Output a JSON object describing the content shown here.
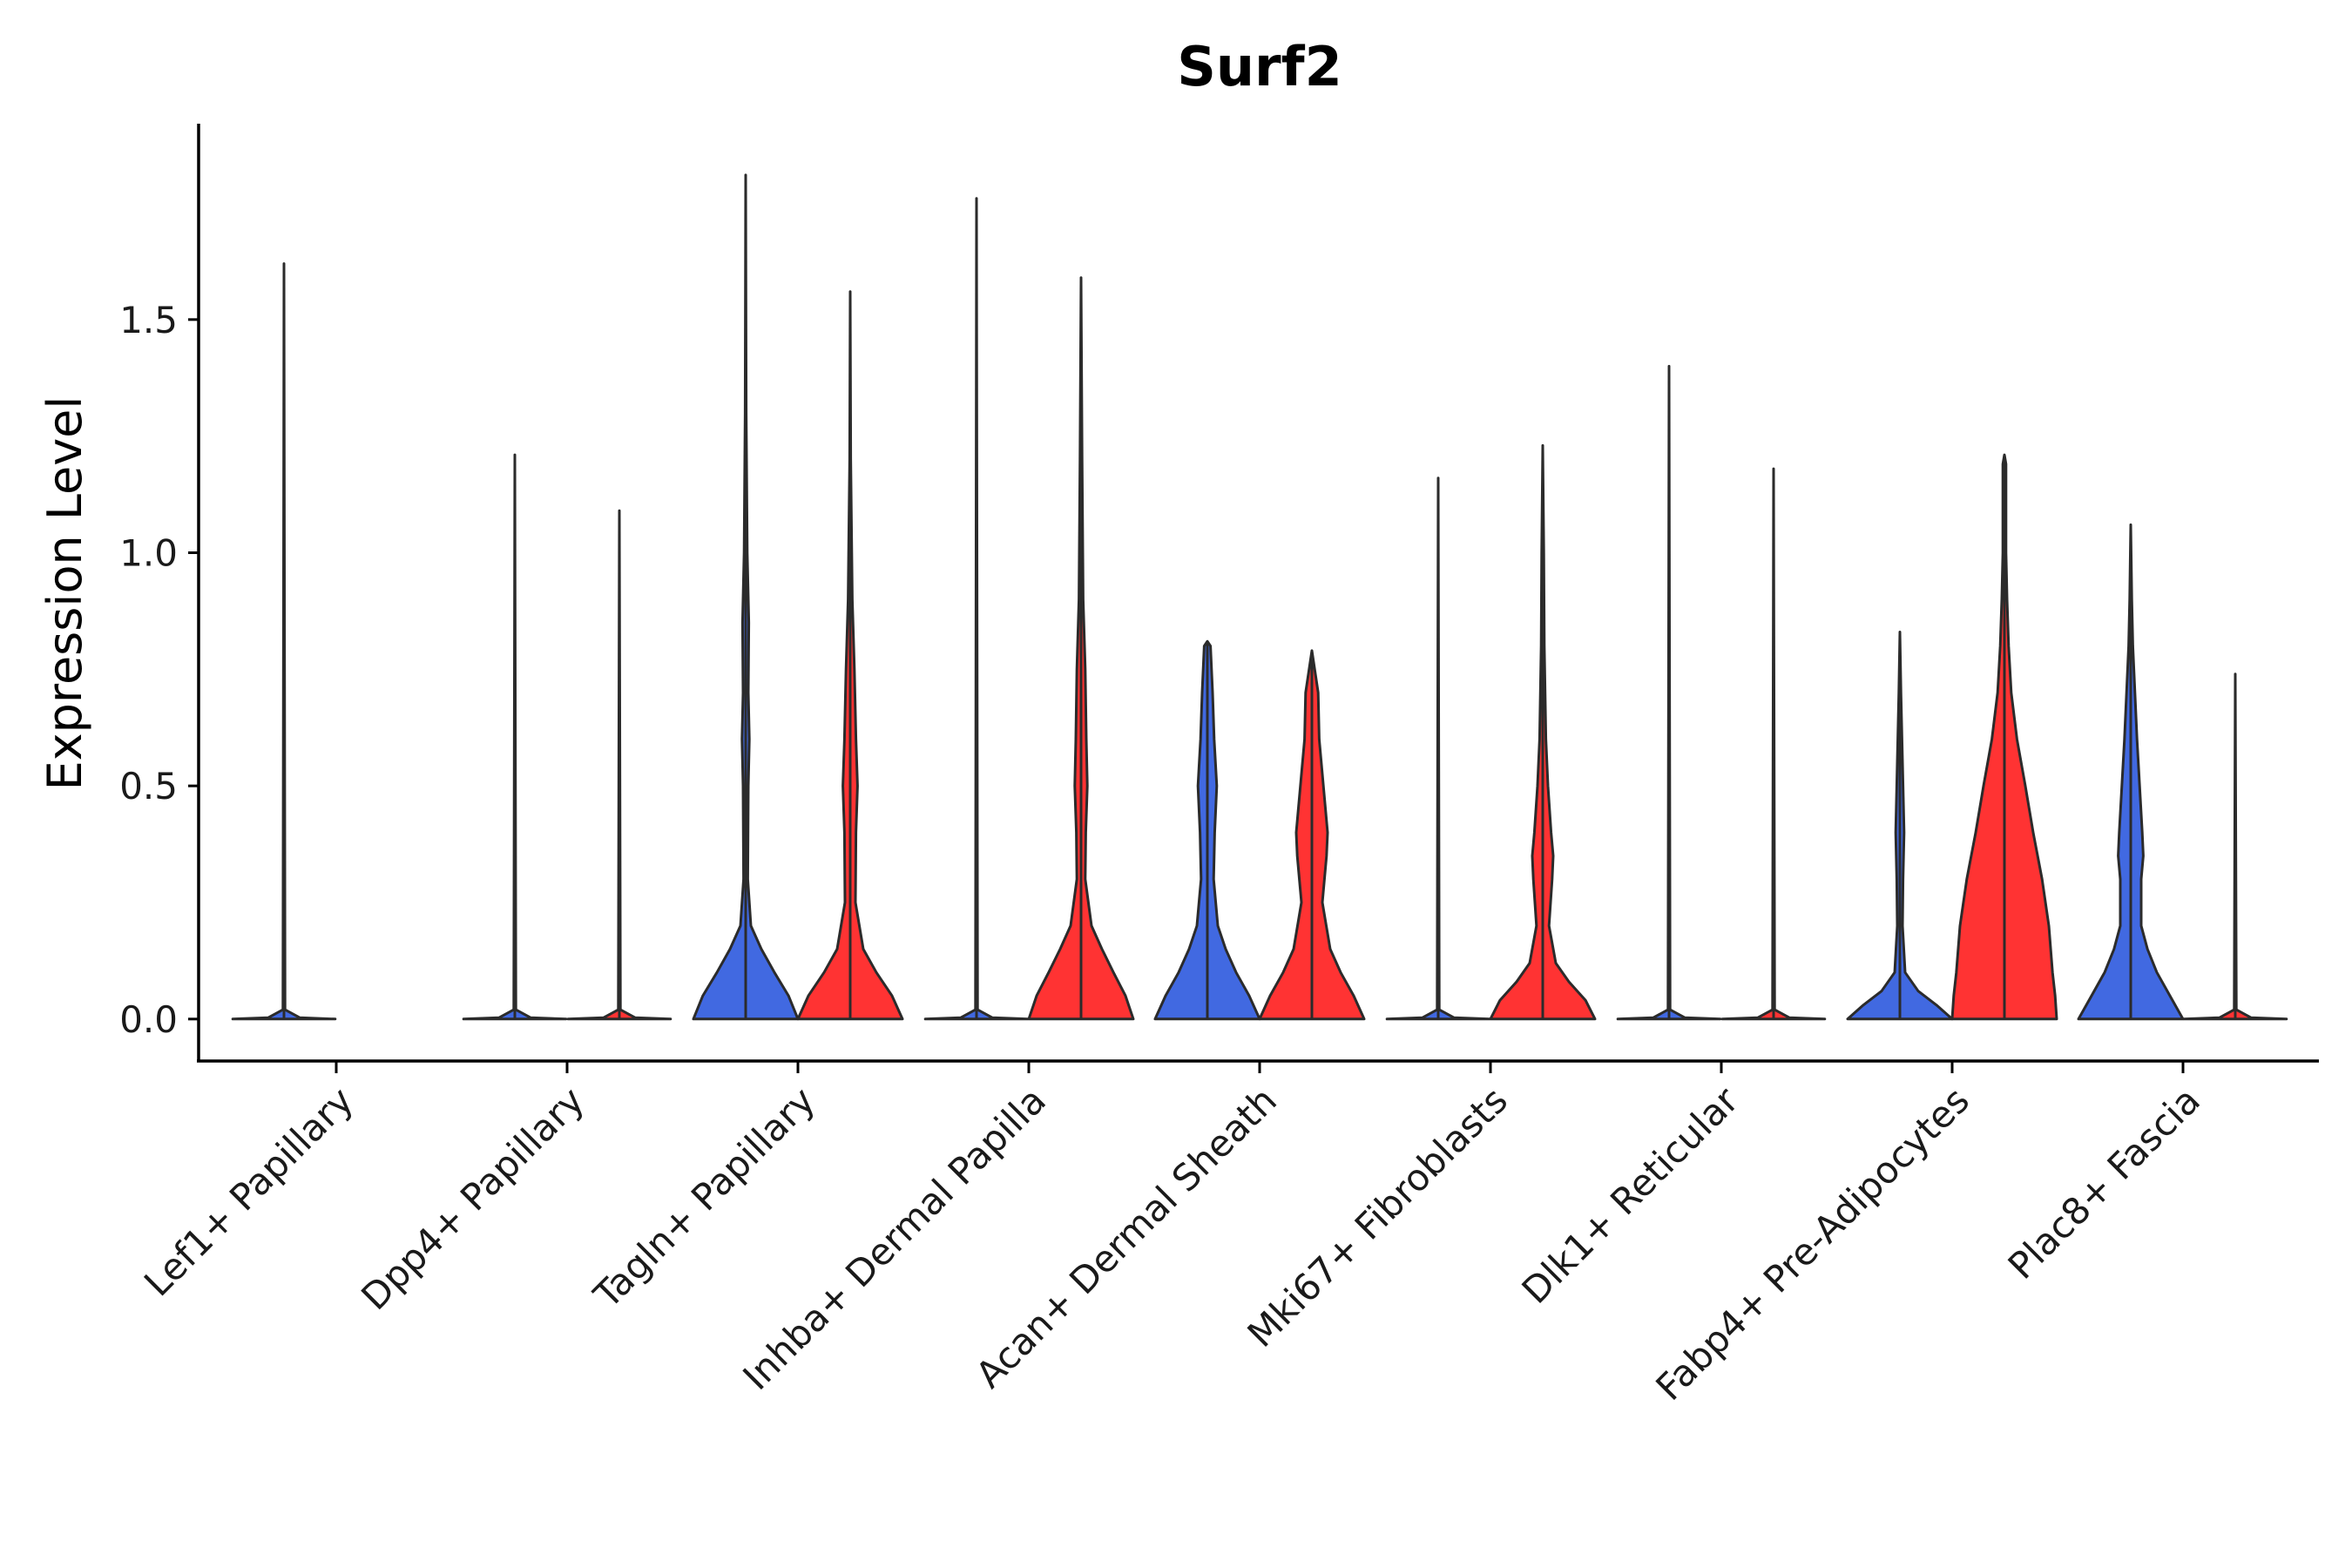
{
  "chart_data": {
    "type": "violin",
    "title": "Surf2",
    "xlabel": "",
    "ylabel": "Expression Level",
    "ylim": [
      -0.09,
      1.92
    ],
    "yticks": [
      0.0,
      0.5,
      1.0,
      1.5
    ],
    "ytick_labels": [
      "0.0",
      "0.5",
      "1.0",
      "1.5"
    ],
    "legend": "none",
    "grid": false,
    "categories": [
      "Lef1+ Papillary",
      "Dpp4+ Papillary",
      "Tagln+ Papillary",
      "Inhba+ Dermal Papilla",
      "Acan+ Dermal Sheath",
      "Mki67+ Fibroblasts",
      "Dlk1+ Reticular",
      "Fabp4+ Pre-Adipocytes",
      "Plac8+ Fascia"
    ],
    "series": [
      {
        "name": "group1",
        "color": "#4169E1",
        "max": [
          1.62,
          1.21,
          1.81,
          1.76,
          0.81,
          1.16,
          1.4,
          0.83,
          1.06
        ],
        "profiles": [
          [
            [
              0,
              0.98
            ],
            [
              0.003,
              0.3
            ],
            [
              0.02,
              0.02
            ],
            [
              1.62,
              0
            ]
          ],
          [
            [
              0,
              0.98
            ],
            [
              0.003,
              0.3
            ],
            [
              0.02,
              0.02
            ],
            [
              1.21,
              0
            ]
          ],
          [
            [
              0,
              1
            ],
            [
              0.05,
              0.82
            ],
            [
              0.1,
              0.55
            ],
            [
              0.15,
              0.3
            ],
            [
              0.2,
              0.1
            ],
            [
              0.3,
              0.04
            ],
            [
              0.5,
              0.05
            ],
            [
              0.6,
              0.07
            ],
            [
              0.7,
              0.05
            ],
            [
              0.85,
              0.06
            ],
            [
              1.0,
              0.03
            ],
            [
              1.3,
              0.01
            ],
            [
              1.81,
              0
            ]
          ],
          [
            [
              0,
              0.98
            ],
            [
              0.003,
              0.3
            ],
            [
              0.02,
              0.02
            ],
            [
              1.76,
              0
            ]
          ],
          [
            [
              0,
              1
            ],
            [
              0.05,
              0.8
            ],
            [
              0.1,
              0.55
            ],
            [
              0.15,
              0.35
            ],
            [
              0.2,
              0.2
            ],
            [
              0.3,
              0.12
            ],
            [
              0.4,
              0.14
            ],
            [
              0.5,
              0.18
            ],
            [
              0.6,
              0.13
            ],
            [
              0.7,
              0.1
            ],
            [
              0.8,
              0.06
            ],
            [
              0.81,
              0
            ]
          ],
          [
            [
              0,
              0.98
            ],
            [
              0.003,
              0.3
            ],
            [
              0.02,
              0.02
            ],
            [
              1.16,
              0
            ]
          ],
          [
            [
              0,
              0.98
            ],
            [
              0.003,
              0.3
            ],
            [
              0.02,
              0.02
            ],
            [
              1.4,
              0
            ]
          ],
          [
            [
              0,
              1
            ],
            [
              0.03,
              0.7
            ],
            [
              0.06,
              0.35
            ],
            [
              0.1,
              0.1
            ],
            [
              0.2,
              0.05
            ],
            [
              0.3,
              0.06
            ],
            [
              0.4,
              0.08
            ],
            [
              0.5,
              0.06
            ],
            [
              0.6,
              0.04
            ],
            [
              0.7,
              0.02
            ],
            [
              0.83,
              0
            ]
          ],
          [
            [
              0,
              1
            ],
            [
              0.05,
              0.75
            ],
            [
              0.1,
              0.5
            ],
            [
              0.15,
              0.32
            ],
            [
              0.2,
              0.2
            ],
            [
              0.3,
              0.2
            ],
            [
              0.35,
              0.24
            ],
            [
              0.4,
              0.22
            ],
            [
              0.5,
              0.17
            ],
            [
              0.6,
              0.12
            ],
            [
              0.7,
              0.08
            ],
            [
              0.8,
              0.04
            ],
            [
              0.9,
              0.02
            ],
            [
              1.06,
              0
            ]
          ]
        ]
      },
      {
        "name": "group2",
        "color": "#FF3333",
        "max": [
          0.0,
          1.09,
          1.56,
          1.59,
          0.79,
          1.23,
          1.18,
          1.21,
          0.74
        ],
        "profiles": [
          [],
          [
            [
              0,
              0.98
            ],
            [
              0.003,
              0.3
            ],
            [
              0.02,
              0.02
            ],
            [
              1.09,
              0
            ]
          ],
          [
            [
              0,
              1
            ],
            [
              0.05,
              0.8
            ],
            [
              0.1,
              0.5
            ],
            [
              0.15,
              0.25
            ],
            [
              0.25,
              0.1
            ],
            [
              0.4,
              0.11
            ],
            [
              0.5,
              0.14
            ],
            [
              0.6,
              0.11
            ],
            [
              0.75,
              0.08
            ],
            [
              0.9,
              0.04
            ],
            [
              1.2,
              0.01
            ],
            [
              1.56,
              0
            ]
          ],
          [
            [
              0,
              1
            ],
            [
              0.05,
              0.85
            ],
            [
              0.1,
              0.62
            ],
            [
              0.15,
              0.4
            ],
            [
              0.2,
              0.2
            ],
            [
              0.3,
              0.08
            ],
            [
              0.4,
              0.09
            ],
            [
              0.5,
              0.12
            ],
            [
              0.6,
              0.1
            ],
            [
              0.75,
              0.08
            ],
            [
              0.9,
              0.04
            ],
            [
              1.2,
              0.02
            ],
            [
              1.59,
              0
            ]
          ],
          [
            [
              0,
              1
            ],
            [
              0.05,
              0.8
            ],
            [
              0.1,
              0.55
            ],
            [
              0.15,
              0.35
            ],
            [
              0.25,
              0.2
            ],
            [
              0.35,
              0.28
            ],
            [
              0.4,
              0.3
            ],
            [
              0.5,
              0.22
            ],
            [
              0.6,
              0.14
            ],
            [
              0.7,
              0.12
            ],
            [
              0.79,
              0
            ]
          ],
          [
            [
              0,
              1
            ],
            [
              0.04,
              0.82
            ],
            [
              0.08,
              0.5
            ],
            [
              0.12,
              0.25
            ],
            [
              0.2,
              0.12
            ],
            [
              0.3,
              0.18
            ],
            [
              0.35,
              0.2
            ],
            [
              0.4,
              0.16
            ],
            [
              0.5,
              0.1
            ],
            [
              0.6,
              0.06
            ],
            [
              0.8,
              0.03
            ],
            [
              1.0,
              0.02
            ],
            [
              1.23,
              0
            ]
          ],
          [
            [
              0,
              0.98
            ],
            [
              0.003,
              0.3
            ],
            [
              0.02,
              0.02
            ],
            [
              1.18,
              0
            ]
          ],
          [
            [
              0,
              1
            ],
            [
              0.05,
              0.97
            ],
            [
              0.1,
              0.92
            ],
            [
              0.2,
              0.85
            ],
            [
              0.3,
              0.72
            ],
            [
              0.4,
              0.55
            ],
            [
              0.5,
              0.4
            ],
            [
              0.6,
              0.24
            ],
            [
              0.7,
              0.13
            ],
            [
              0.8,
              0.08
            ],
            [
              0.9,
              0.05
            ],
            [
              1.0,
              0.03
            ],
            [
              1.1,
              0.03
            ],
            [
              1.19,
              0.03
            ],
            [
              1.21,
              0
            ]
          ],
          [
            [
              0,
              0.98
            ],
            [
              0.003,
              0.3
            ],
            [
              0.02,
              0.02
            ],
            [
              0.74,
              0
            ]
          ]
        ]
      }
    ]
  }
}
